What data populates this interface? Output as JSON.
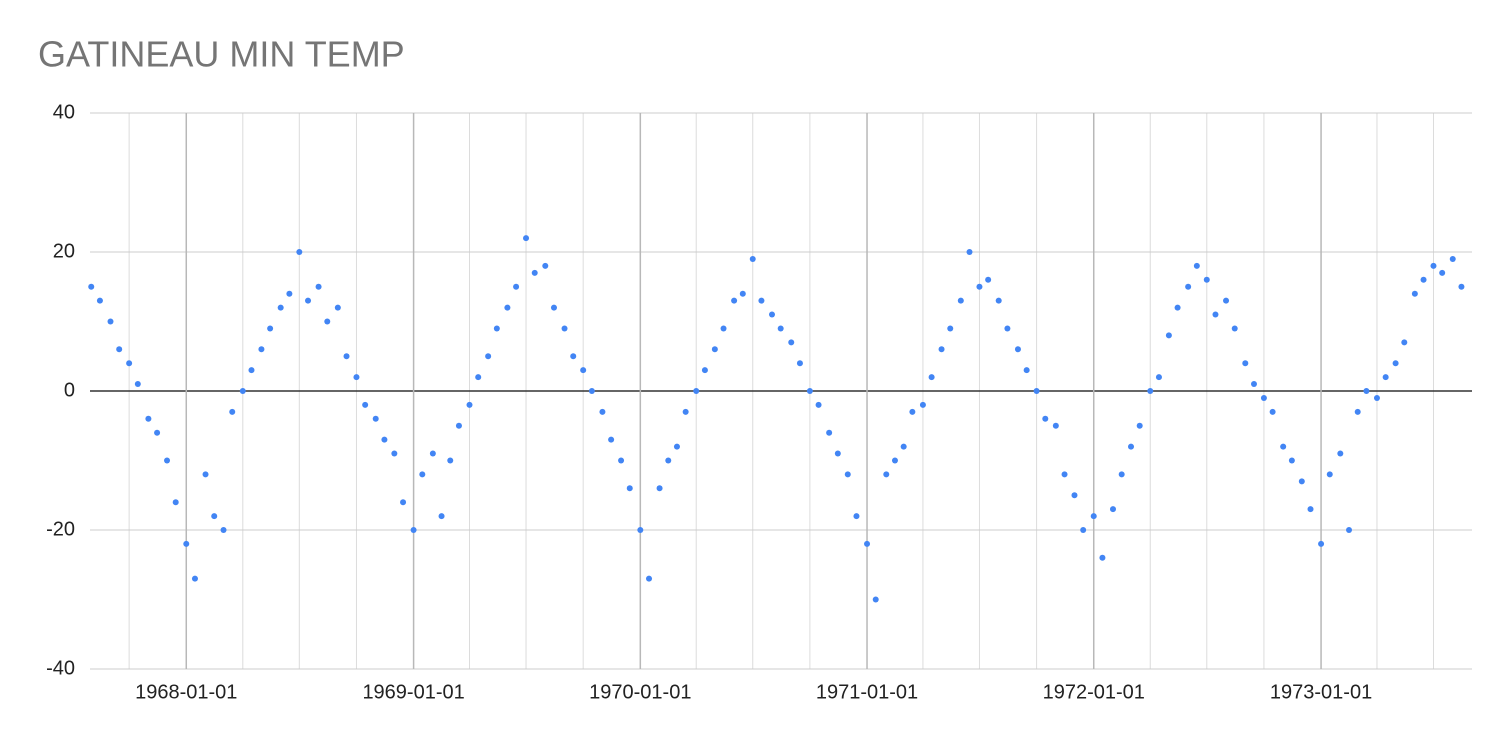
{
  "chart_data": {
    "type": "scatter",
    "title": "GATINEAU MIN TEMP",
    "color": "#4285f4",
    "grid": true,
    "xlim": [
      "1967-07-30",
      "1973-09-01"
    ],
    "xticks": [
      "1968-01-01",
      "1969-01-01",
      "1970-01-01",
      "1971-01-01",
      "1972-01-01",
      "1973-01-01"
    ],
    "minor_xticks": [
      "1967-10-01",
      "1968-04-01",
      "1968-07-01",
      "1968-10-01",
      "1969-04-01",
      "1969-07-01",
      "1969-10-01",
      "1970-04-01",
      "1970-07-01",
      "1970-10-01",
      "1971-04-01",
      "1971-07-01",
      "1971-10-01",
      "1972-04-01",
      "1972-07-01",
      "1972-10-01",
      "1973-04-01",
      "1973-07-01"
    ],
    "ylim": [
      -40,
      40
    ],
    "yticks": [
      -40,
      -20,
      0,
      20,
      40
    ],
    "x": [
      "1967-08-01",
      "1967-08-15",
      "1967-09-01",
      "1967-09-15",
      "1967-10-01",
      "1967-10-15",
      "1967-11-01",
      "1967-11-15",
      "1967-12-01",
      "1967-12-15",
      "1968-01-01",
      "1968-01-15",
      "1968-02-01",
      "1968-02-15",
      "1968-03-01",
      "1968-03-15",
      "1968-04-01",
      "1968-04-15",
      "1968-05-01",
      "1968-05-15",
      "1968-06-01",
      "1968-06-15",
      "1968-07-01",
      "1968-07-15",
      "1968-08-01",
      "1968-08-15",
      "1968-09-01",
      "1968-09-15",
      "1968-10-01",
      "1968-10-15",
      "1968-11-01",
      "1968-11-15",
      "1968-12-01",
      "1968-12-15",
      "1969-01-01",
      "1969-01-15",
      "1969-02-01",
      "1969-02-15",
      "1969-03-01",
      "1969-03-15",
      "1969-04-01",
      "1969-04-15",
      "1969-05-01",
      "1969-05-15",
      "1969-06-01",
      "1969-06-15",
      "1969-07-01",
      "1969-07-15",
      "1969-08-01",
      "1969-08-15",
      "1969-09-01",
      "1969-09-15",
      "1969-10-01",
      "1969-10-15",
      "1969-11-01",
      "1969-11-15",
      "1969-12-01",
      "1969-12-15",
      "1970-01-01",
      "1970-01-15",
      "1970-02-01",
      "1970-02-15",
      "1970-03-01",
      "1970-03-15",
      "1970-04-01",
      "1970-04-15",
      "1970-05-01",
      "1970-05-15",
      "1970-06-01",
      "1970-06-15",
      "1970-07-01",
      "1970-07-15",
      "1970-08-01",
      "1970-08-15",
      "1970-09-01",
      "1970-09-15",
      "1970-10-01",
      "1970-10-15",
      "1970-11-01",
      "1970-11-15",
      "1970-12-01",
      "1970-12-15",
      "1971-01-01",
      "1971-01-15",
      "1971-02-01",
      "1971-02-15",
      "1971-03-01",
      "1971-03-15",
      "1971-04-01",
      "1971-04-15",
      "1971-05-01",
      "1971-05-15",
      "1971-06-01",
      "1971-06-15",
      "1971-07-01",
      "1971-07-15",
      "1971-08-01",
      "1971-08-15",
      "1971-09-01",
      "1971-09-15",
      "1971-10-01",
      "1971-10-15",
      "1971-11-01",
      "1971-11-15",
      "1971-12-01",
      "1971-12-15",
      "1972-01-01",
      "1972-01-15",
      "1972-02-01",
      "1972-02-15",
      "1972-03-01",
      "1972-03-15",
      "1972-04-01",
      "1972-04-15",
      "1972-05-01",
      "1972-05-15",
      "1972-06-01",
      "1972-06-15",
      "1972-07-01",
      "1972-07-15",
      "1972-08-01",
      "1972-08-15",
      "1972-09-01",
      "1972-09-15",
      "1972-10-01",
      "1972-10-15",
      "1972-11-01",
      "1972-11-15",
      "1972-12-01",
      "1972-12-15",
      "1973-01-01",
      "1973-01-15",
      "1973-02-01",
      "1973-02-15",
      "1973-03-01",
      "1973-03-15",
      "1973-04-01",
      "1973-04-15",
      "1973-05-01",
      "1973-05-15",
      "1973-06-01",
      "1973-06-15",
      "1973-07-01",
      "1973-07-15",
      "1973-08-01",
      "1973-08-15"
    ],
    "values": [
      15,
      13,
      10,
      6,
      4,
      1,
      -4,
      -6,
      -10,
      -16,
      -22,
      -27,
      -12,
      -18,
      -20,
      -3,
      0,
      3,
      6,
      9,
      12,
      14,
      20,
      13,
      15,
      10,
      12,
      5,
      2,
      -2,
      -4,
      -7,
      -9,
      -16,
      -20,
      -12,
      -9,
      -18,
      -10,
      -5,
      -2,
      2,
      5,
      9,
      12,
      15,
      22,
      17,
      18,
      12,
      9,
      5,
      3,
      0,
      -3,
      -7,
      -10,
      -14,
      -20,
      -27,
      -14,
      -10,
      -8,
      -3,
      0,
      3,
      6,
      9,
      13,
      14,
      19,
      13,
      11,
      9,
      7,
      4,
      0,
      -2,
      -6,
      -9,
      -12,
      -18,
      -22,
      -30,
      -12,
      -10,
      -8,
      -3,
      -2,
      2,
      6,
      9,
      13,
      20,
      15,
      16,
      13,
      9,
      6,
      3,
      0,
      -4,
      -5,
      -12,
      -15,
      -20,
      -18,
      -24,
      -17,
      -12,
      -8,
      -5,
      0,
      2,
      8,
      12,
      15,
      18,
      16,
      11,
      13,
      9,
      4,
      1,
      -1,
      -3,
      -8,
      -10,
      -13,
      -17,
      -22,
      -12,
      -9,
      -20,
      -3,
      0,
      -1,
      2,
      4,
      7,
      14,
      16,
      18,
      17,
      19,
      15
    ]
  }
}
